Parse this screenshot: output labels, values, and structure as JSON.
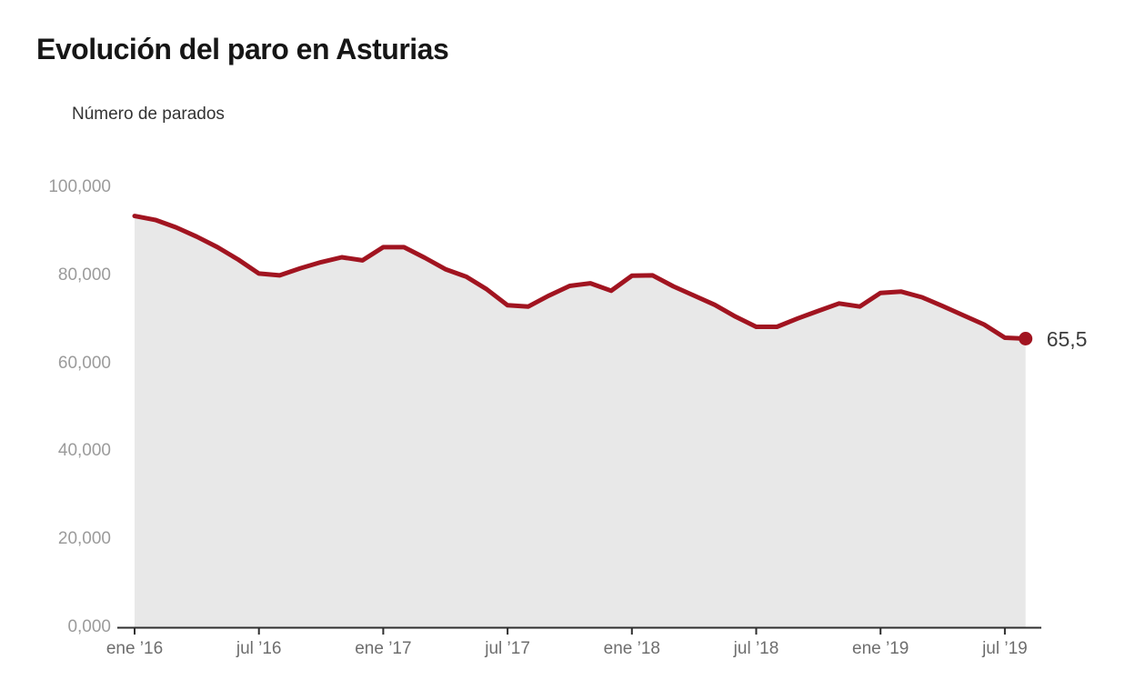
{
  "title": "Evolución del paro en Asturias",
  "legend": {
    "label": "Número de parados"
  },
  "colors": {
    "line": "#a11420",
    "marker": "#a11420",
    "area": "#e8e8e8",
    "axis": "#2f2f2f",
    "title_text": "#161616",
    "legend_text": "#333333",
    "y_tick_text": "#9b9b9b",
    "x_tick_text": "#6e6e6e",
    "end_label_text": "#3d3d3d",
    "background": "#ffffff"
  },
  "chart_data": {
    "type": "area",
    "title": "Evolución del paro en Asturias",
    "series_name": "Número de parados",
    "xlabel": "",
    "ylabel": "",
    "ylim": [
      0,
      100000
    ],
    "grid": false,
    "legend_position": "top-left",
    "x_tick_labels": [
      "ene ’16",
      "jul ’16",
      "ene ’17",
      "jul ’17",
      "ene ’18",
      "jul ’18",
      "ene ’19",
      "jul ’19"
    ],
    "x_tick_month_indices": [
      0,
      6,
      12,
      18,
      24,
      30,
      36,
      42
    ],
    "y_tick_labels": [
      "0,000",
      "20,000",
      "40,000",
      "60,000",
      "80,000",
      "100,000"
    ],
    "y_tick_values": [
      0,
      20000,
      40000,
      60000,
      80000,
      100000
    ],
    "x": [
      "ene ’16",
      "feb ’16",
      "mar ’16",
      "abr ’16",
      "may ’16",
      "jun ’16",
      "jul ’16",
      "ago ’16",
      "sep ’16",
      "oct ’16",
      "nov ’16",
      "dic ’16",
      "ene ’17",
      "feb ’17",
      "mar ’17",
      "abr ’17",
      "may ’17",
      "jun ’17",
      "jul ’17",
      "ago ’17",
      "sep ’17",
      "oct ’17",
      "nov ’17",
      "dic ’17",
      "ene ’18",
      "feb ’18",
      "mar ’18",
      "abr ’18",
      "may ’18",
      "jun ’18",
      "jul ’18",
      "ago ’18",
      "sep ’18",
      "oct ’18",
      "nov ’18",
      "dic ’18",
      "ene ’19",
      "feb ’19",
      "mar ’19",
      "abr ’19",
      "may ’19",
      "jun ’19",
      "jul ’19",
      "ago ’19"
    ],
    "values": [
      93400,
      92500,
      90800,
      88700,
      86300,
      83500,
      80300,
      79900,
      81500,
      82900,
      84000,
      83300,
      86300,
      86300,
      83900,
      81300,
      79600,
      76700,
      73100,
      72800,
      75300,
      77500,
      78100,
      76400,
      79800,
      79900,
      77400,
      75300,
      73200,
      70500,
      68200,
      68200,
      70100,
      71800,
      73500,
      72800,
      75900,
      76200,
      74900,
      72900,
      70800,
      68700,
      65700,
      65500
    ],
    "last_point_label": "65,5"
  }
}
